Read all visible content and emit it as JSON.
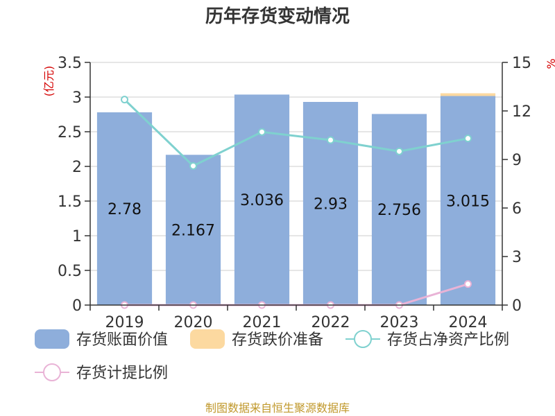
{
  "chart_data": {
    "type": "bar",
    "title": "历年存货变动情况",
    "categories": [
      "2019",
      "2020",
      "2021",
      "2022",
      "2023",
      "2024"
    ],
    "left_axis": {
      "unit": "(亿元)",
      "ylim": [
        0,
        3.5
      ],
      "ticks": [
        "0",
        "0.5",
        "1",
        "1.5",
        "2",
        "2.5",
        "3",
        "3.5"
      ]
    },
    "right_axis": {
      "unit": "%",
      "ylim": [
        0,
        15
      ],
      "ticks": [
        "0",
        "3",
        "6",
        "9",
        "12",
        "15"
      ]
    },
    "series": [
      {
        "name": "存货账面价值",
        "kind": "bar",
        "axis": "left",
        "color": "#8eaedb",
        "values": [
          2.78,
          2.167,
          3.036,
          2.93,
          2.756,
          3.015
        ],
        "labels": [
          "2.78",
          "2.167",
          "3.036",
          "2.93",
          "2.756",
          "3.015"
        ]
      },
      {
        "name": "存货跌价准备",
        "kind": "bar-stack",
        "axis": "left",
        "color": "#fcd9a0",
        "values": [
          0,
          0,
          0,
          0,
          0,
          0.04
        ]
      },
      {
        "name": "存货占净资产比例",
        "kind": "line",
        "axis": "right",
        "color": "#7fd1cf",
        "values": [
          12.7,
          8.6,
          10.7,
          10.2,
          9.5,
          10.3
        ]
      },
      {
        "name": "存货计提比例",
        "kind": "line",
        "axis": "right",
        "color": "#e9b3d6",
        "values": [
          0,
          0,
          0,
          0,
          0,
          1.3
        ]
      }
    ],
    "grid": true,
    "legend_position": "bottom"
  },
  "source": "制图数据来自恒生聚源数据库"
}
